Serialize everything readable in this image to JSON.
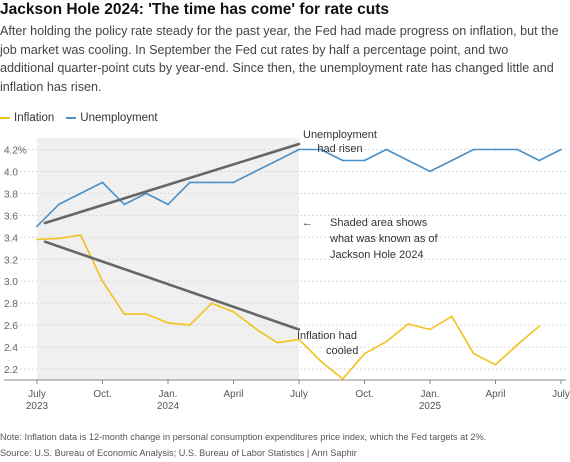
{
  "title": "Jackson Hole 2024: 'The time has come' for rate cuts",
  "subtitle": "After holding the policy rate steady for the past year, the Fed had made progress on inflation, but the job market was cooling. In September the Fed cut rates by half a percentage point, and two additional quarter-point cuts by year-end. Since then, the unemployment rate has changed little and inflation has risen.",
  "note": "Note: Inflation data is 12-month change in personal consumption expenditures price index, which the Fed targets at 2%.",
  "source": "Source: U.S. Bureau of Economic Analysis; U.S. Bureau of Labor Statistics | Ann Saphir",
  "colors": {
    "inflation": "#f2c21b",
    "unemployment": "#4a90c8",
    "trend": "#666666",
    "shade": "#f0f0f0",
    "grid": "#d9d9d9"
  },
  "chart_data": {
    "type": "line",
    "x": [
      "2023-07",
      "2023-08",
      "2023-09",
      "2023-10",
      "2023-11",
      "2023-12",
      "2024-01",
      "2024-02",
      "2024-03",
      "2024-04",
      "2024-05",
      "2024-06",
      "2024-07",
      "2024-08",
      "2024-09",
      "2024-10",
      "2024-11",
      "2024-12",
      "2025-01",
      "2025-02",
      "2025-03",
      "2025-04",
      "2025-05",
      "2025-06",
      "2025-07"
    ],
    "series": [
      {
        "name": "Inflation",
        "values": [
          3.38,
          3.39,
          3.42,
          3.0,
          2.7,
          2.7,
          2.62,
          2.6,
          2.8,
          2.72,
          2.57,
          2.44,
          2.47,
          2.27,
          2.11,
          2.34,
          2.45,
          2.61,
          2.56,
          2.68,
          2.34,
          2.24,
          2.42,
          2.59,
          null
        ]
      },
      {
        "name": "Unemployment",
        "values": [
          3.5,
          3.7,
          3.8,
          3.9,
          3.7,
          3.8,
          3.7,
          3.9,
          3.9,
          3.9,
          4.0,
          4.1,
          4.2,
          4.2,
          4.1,
          4.1,
          4.2,
          4.1,
          4.0,
          4.1,
          4.2,
          4.2,
          4.2,
          4.1,
          4.2
        ]
      }
    ],
    "ylim": [
      2.1,
      4.25
    ],
    "yticks": [
      "2.2",
      "2.4",
      "2.6",
      "2.8",
      "3.0",
      "3.2",
      "3.4",
      "3.6",
      "3.8",
      "4.0",
      "4.2%"
    ],
    "xticks": [
      {
        "month": "2023-07",
        "line1": "July",
        "line2": "2023"
      },
      {
        "month": "2023-10",
        "line1": "Oct.",
        "line2": ""
      },
      {
        "month": "2024-01",
        "line1": "Jan.",
        "line2": "2024"
      },
      {
        "month": "2024-04",
        "line1": "April",
        "line2": ""
      },
      {
        "month": "2024-07",
        "line1": "July",
        "line2": ""
      },
      {
        "month": "2024-10",
        "line1": "Oct.",
        "line2": ""
      },
      {
        "month": "2025-01",
        "line1": "Jan.",
        "line2": "2025"
      },
      {
        "month": "2025-04",
        "line1": "April",
        "line2": ""
      },
      {
        "month": "2025-07",
        "line1": "July",
        "line2": ""
      }
    ],
    "shaded_range": [
      "2023-07",
      "2024-07"
    ],
    "trend_lines": [
      {
        "from": [
          "2023-07",
          3.53
        ],
        "to": [
          "2024-07",
          4.25
        ]
      },
      {
        "from": [
          "2023-07",
          3.36
        ],
        "to": [
          "2024-07",
          2.56
        ]
      }
    ],
    "annotations": {
      "unemployment": [
        "Unemployment",
        "had risen"
      ],
      "shaded": [
        "Shaded area shows",
        "what was known as of",
        "Jackson Hole 2024"
      ],
      "inflation": [
        "Inflation had",
        "cooled"
      ],
      "arrow": "←"
    }
  }
}
